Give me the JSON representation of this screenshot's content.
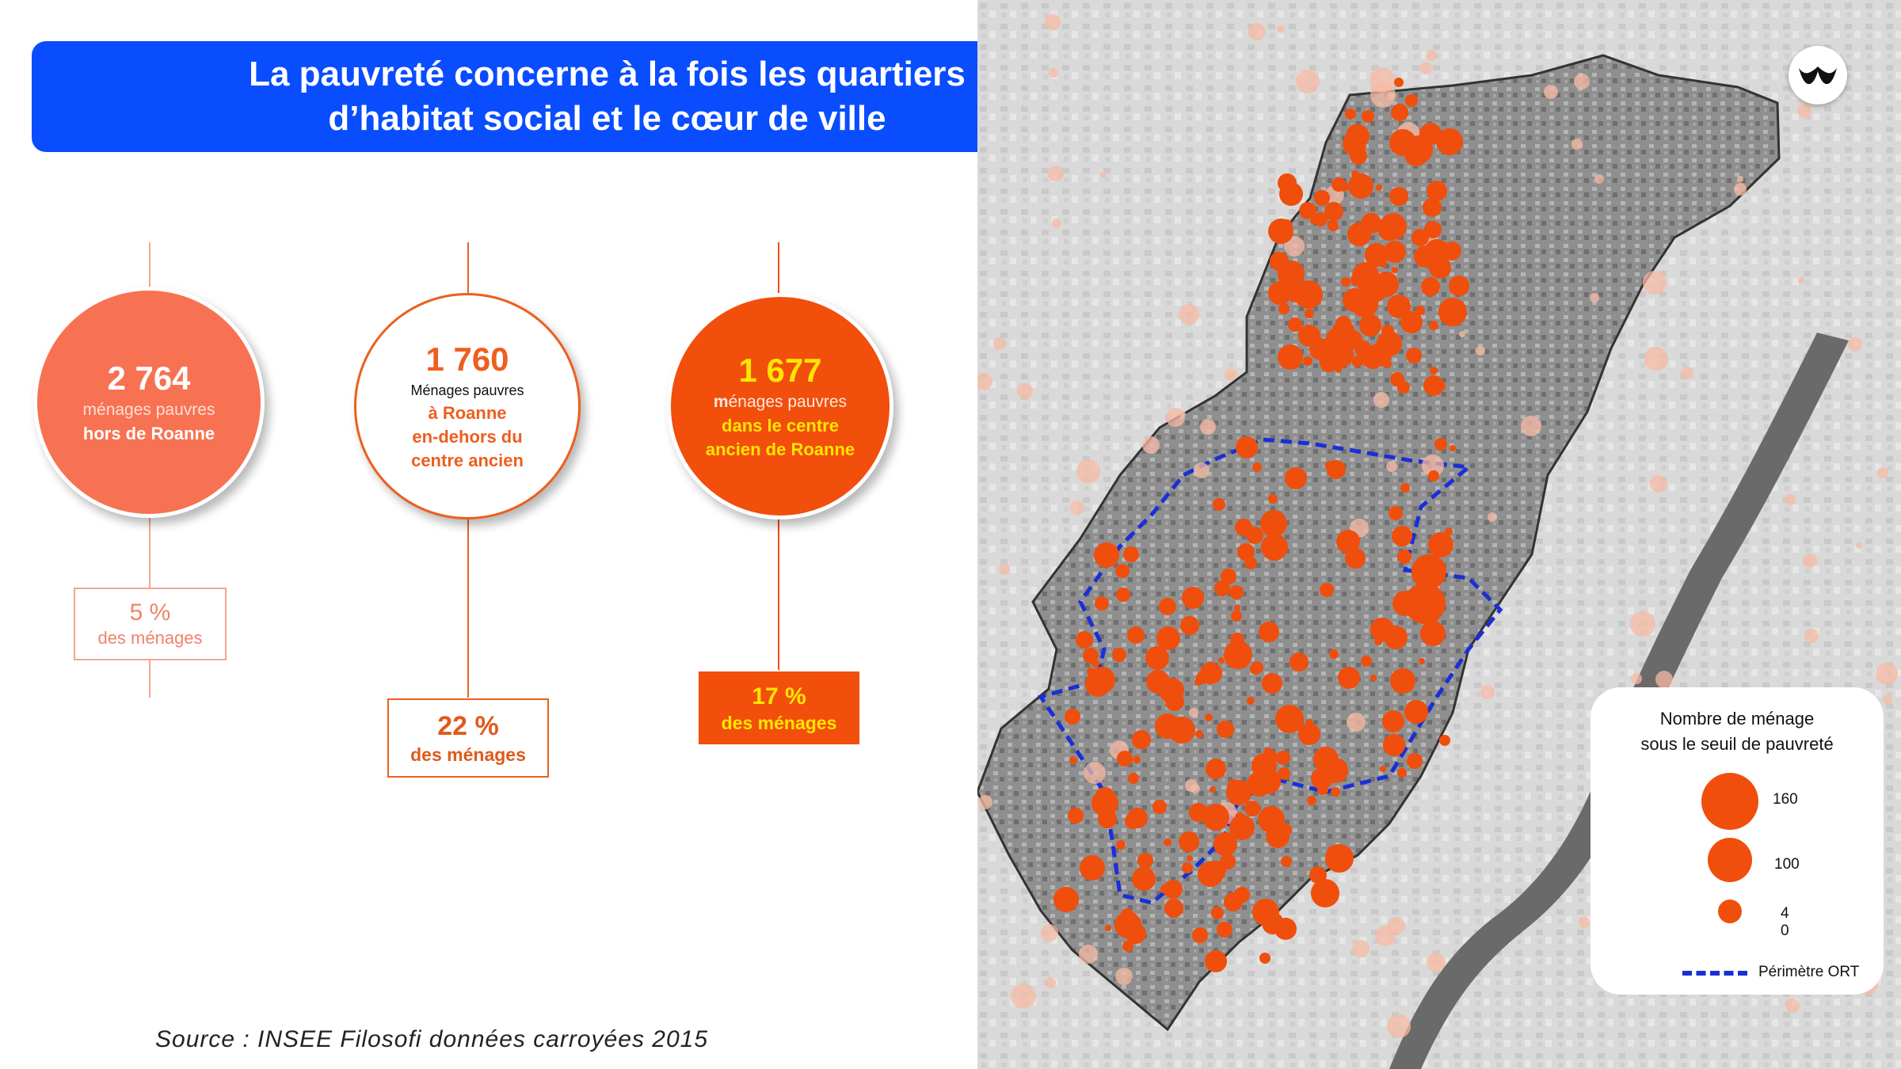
{
  "title": {
    "line1": "La pauvreté concerne à la fois les quartiers",
    "line2": "d’habitat social et le cœur de ville"
  },
  "stats": [
    {
      "number": "2 764",
      "label1": "ménages pauvres",
      "label2": "hors de Roanne",
      "percent": "5 %",
      "percent_label": "des ménages",
      "color": "#f77253"
    },
    {
      "number": "1 760",
      "label1": "Ménages pauvres",
      "label2a": "à Roanne",
      "label2b": "en-dehors du",
      "label2c": "centre ancien",
      "percent": "22 %",
      "percent_label": "des ménages",
      "color": "#ee5e1e"
    },
    {
      "number": "1 677",
      "label1_prefix": "m",
      "label1": "énages pauvres",
      "label2a": "dans le centre",
      "label2b": "ancien de Roanne",
      "percent": "17 %",
      "percent_label": "des ménages",
      "color": "#f24e0c",
      "accent": "#ffe600"
    }
  ],
  "source": "Source :  INSEE Filosofi données carroyées 2015",
  "legend": {
    "title_line1": "Nombre de ménage",
    "title_line2": "sous le seuil de pauvreté",
    "sizes": [
      "160",
      "100",
      "4",
      "0"
    ],
    "perimeter_label": "Périmètre ORT",
    "dot_color": "#f04e0c",
    "perimeter_color": "#1a2fd6"
  },
  "logo_icon": "brand-logo-icon"
}
